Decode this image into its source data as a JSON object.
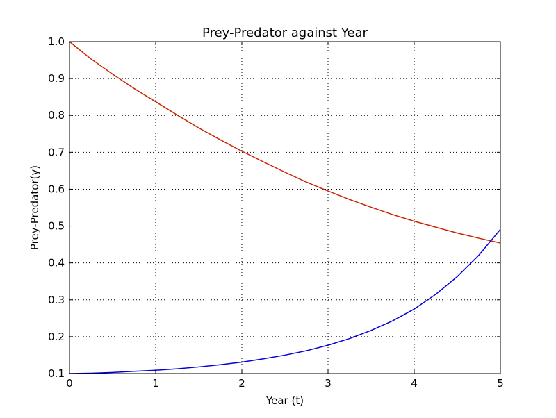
{
  "chart_data": {
    "type": "line",
    "title": "Prey-Predator against Year",
    "xlabel": "Year (t)",
    "ylabel": "Prey-Predator(y)",
    "xlim": [
      0,
      5
    ],
    "ylim": [
      0.1,
      1.0
    ],
    "xticks": [
      0,
      1,
      2,
      3,
      4,
      5
    ],
    "xtick_labels": [
      "0",
      "1",
      "2",
      "3",
      "4",
      "5"
    ],
    "yticks": [
      0.1,
      0.2,
      0.3,
      0.4,
      0.5,
      0.6,
      0.7,
      0.8,
      0.9,
      1.0
    ],
    "ytick_labels": [
      "0.1",
      "0.2",
      "0.3",
      "0.4",
      "0.5",
      "0.6",
      "0.7",
      "0.8",
      "0.9",
      "1.0"
    ],
    "grid": true,
    "x": [
      0,
      0.25,
      0.5,
      0.75,
      1,
      1.25,
      1.5,
      1.75,
      2,
      2.25,
      2.5,
      2.75,
      3,
      3.25,
      3.5,
      3.75,
      4,
      4.25,
      4.5,
      4.75,
      5
    ],
    "series": [
      {
        "color": "#cc2200",
        "values": [
          1.0,
          0.953,
          0.912,
          0.873,
          0.837,
          0.801,
          0.766,
          0.734,
          0.703,
          0.674,
          0.646,
          0.619,
          0.595,
          0.572,
          0.551,
          0.531,
          0.513,
          0.497,
          0.481,
          0.467,
          0.454
        ]
      },
      {
        "color": "#0000dd",
        "values": [
          0.1,
          0.101,
          0.103,
          0.106,
          0.109,
          0.113,
          0.118,
          0.124,
          0.131,
          0.14,
          0.15,
          0.162,
          0.177,
          0.195,
          0.217,
          0.243,
          0.275,
          0.315,
          0.363,
          0.421,
          0.491
        ]
      }
    ]
  }
}
